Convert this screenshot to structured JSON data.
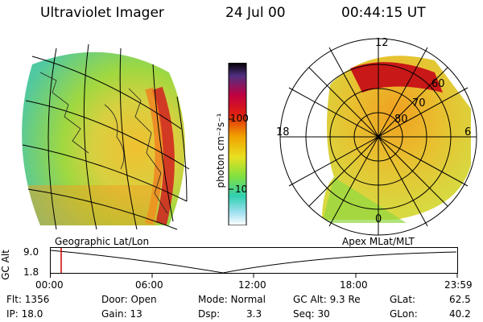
{
  "header": {
    "instrument": "Ultraviolet Imager",
    "date": "24 Jul 00",
    "time": "00:44:15 UT"
  },
  "colorbar": {
    "unit_label": "photon cm⁻²s⁻¹",
    "ticks": [
      "100",
      "10"
    ]
  },
  "polar": {
    "mlt_labels": [
      "12",
      "18",
      "6",
      "0"
    ],
    "mlat_labels": [
      "60",
      "70",
      "80"
    ]
  },
  "timeline": {
    "y_axis_title": "GC Alt",
    "y_ticks": [
      "9.0",
      "1.8"
    ],
    "left_caption": "Geographic Lat/Lon",
    "right_caption": "Apex MLat/MLT",
    "x_ticks": [
      "00:00",
      "06:00",
      "12:00",
      "18:00",
      "23:59"
    ]
  },
  "info": {
    "flt": "Flt: 1356",
    "ip": "IP: 18.0",
    "door": "Door: Open",
    "gain": "Gain: 13",
    "mode": "Mode: Normal",
    "dsp_label": "Dsp:",
    "dsp_value": "3.3",
    "gcalt": "GC Alt: 9.3 Re",
    "seq": "Seq: 30",
    "glat_label": "GLat:",
    "glat_value": "62.5",
    "glon_label": "GLon:",
    "glon_value": "40.2"
  },
  "colors": {
    "marker": "#cc0000"
  }
}
